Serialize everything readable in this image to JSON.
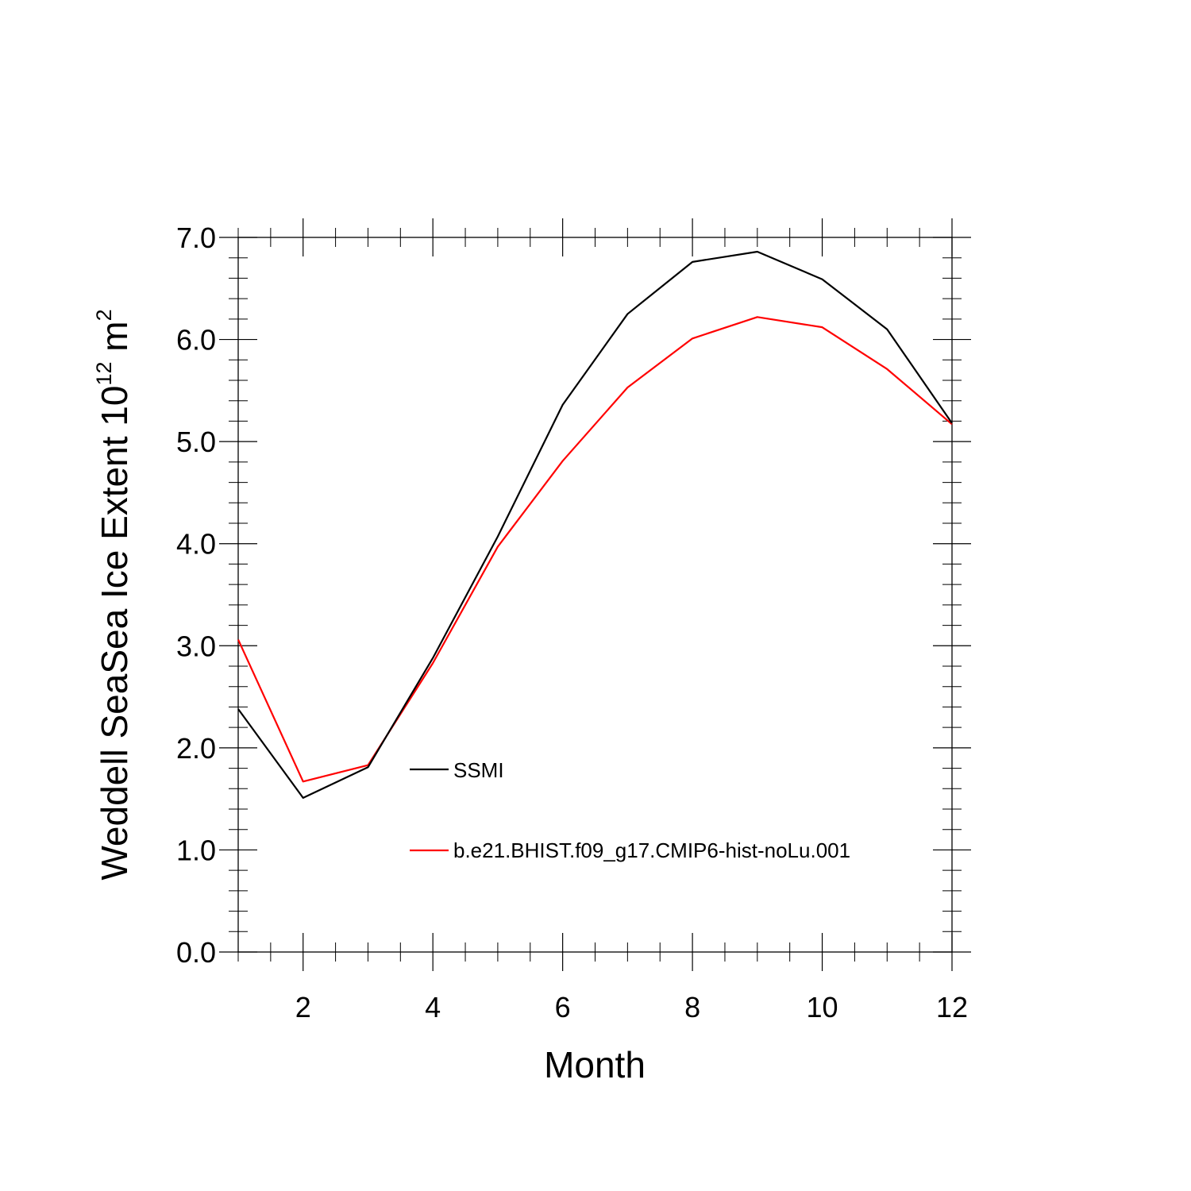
{
  "chart_data": {
    "type": "line",
    "x": [
      1,
      2,
      3,
      4,
      5,
      6,
      7,
      8,
      9,
      10,
      11,
      12
    ],
    "series": [
      {
        "name": "SSMI",
        "color": "#000000",
        "values": [
          2.38,
          1.51,
          1.81,
          2.88,
          4.07,
          5.36,
          6.25,
          6.76,
          6.86,
          6.59,
          6.1,
          5.18
        ]
      },
      {
        "name": "b.e21.BHIST.f09_g17.CMIP6-hist-noLu.001",
        "color": "#ff0000",
        "values": [
          3.06,
          1.67,
          1.83,
          2.83,
          3.97,
          4.81,
          5.53,
          6.01,
          6.22,
          6.12,
          5.71,
          5.17
        ]
      }
    ],
    "xlabel": "Month",
    "ylabel_main": "Weddell SeaSea Ice Extent 10",
    "ylabel_exp": "12",
    "ylabel_unit": " m",
    "ylabel_unit_exp": "2",
    "xlim": [
      1,
      12
    ],
    "ylim": [
      0,
      7
    ],
    "x_ticks": [
      2,
      4,
      6,
      8,
      10,
      12
    ],
    "x_tick_labels": [
      "2",
      "4",
      "6",
      "8",
      "10",
      "12"
    ],
    "y_ticks": [
      0,
      1,
      2,
      3,
      4,
      5,
      6,
      7
    ],
    "y_tick_labels": [
      "0.0",
      "1.0",
      "2.0",
      "3.0",
      "4.0",
      "5.0",
      "6.0",
      "7.0"
    ],
    "grid": false,
    "legend_position": "center-right"
  }
}
